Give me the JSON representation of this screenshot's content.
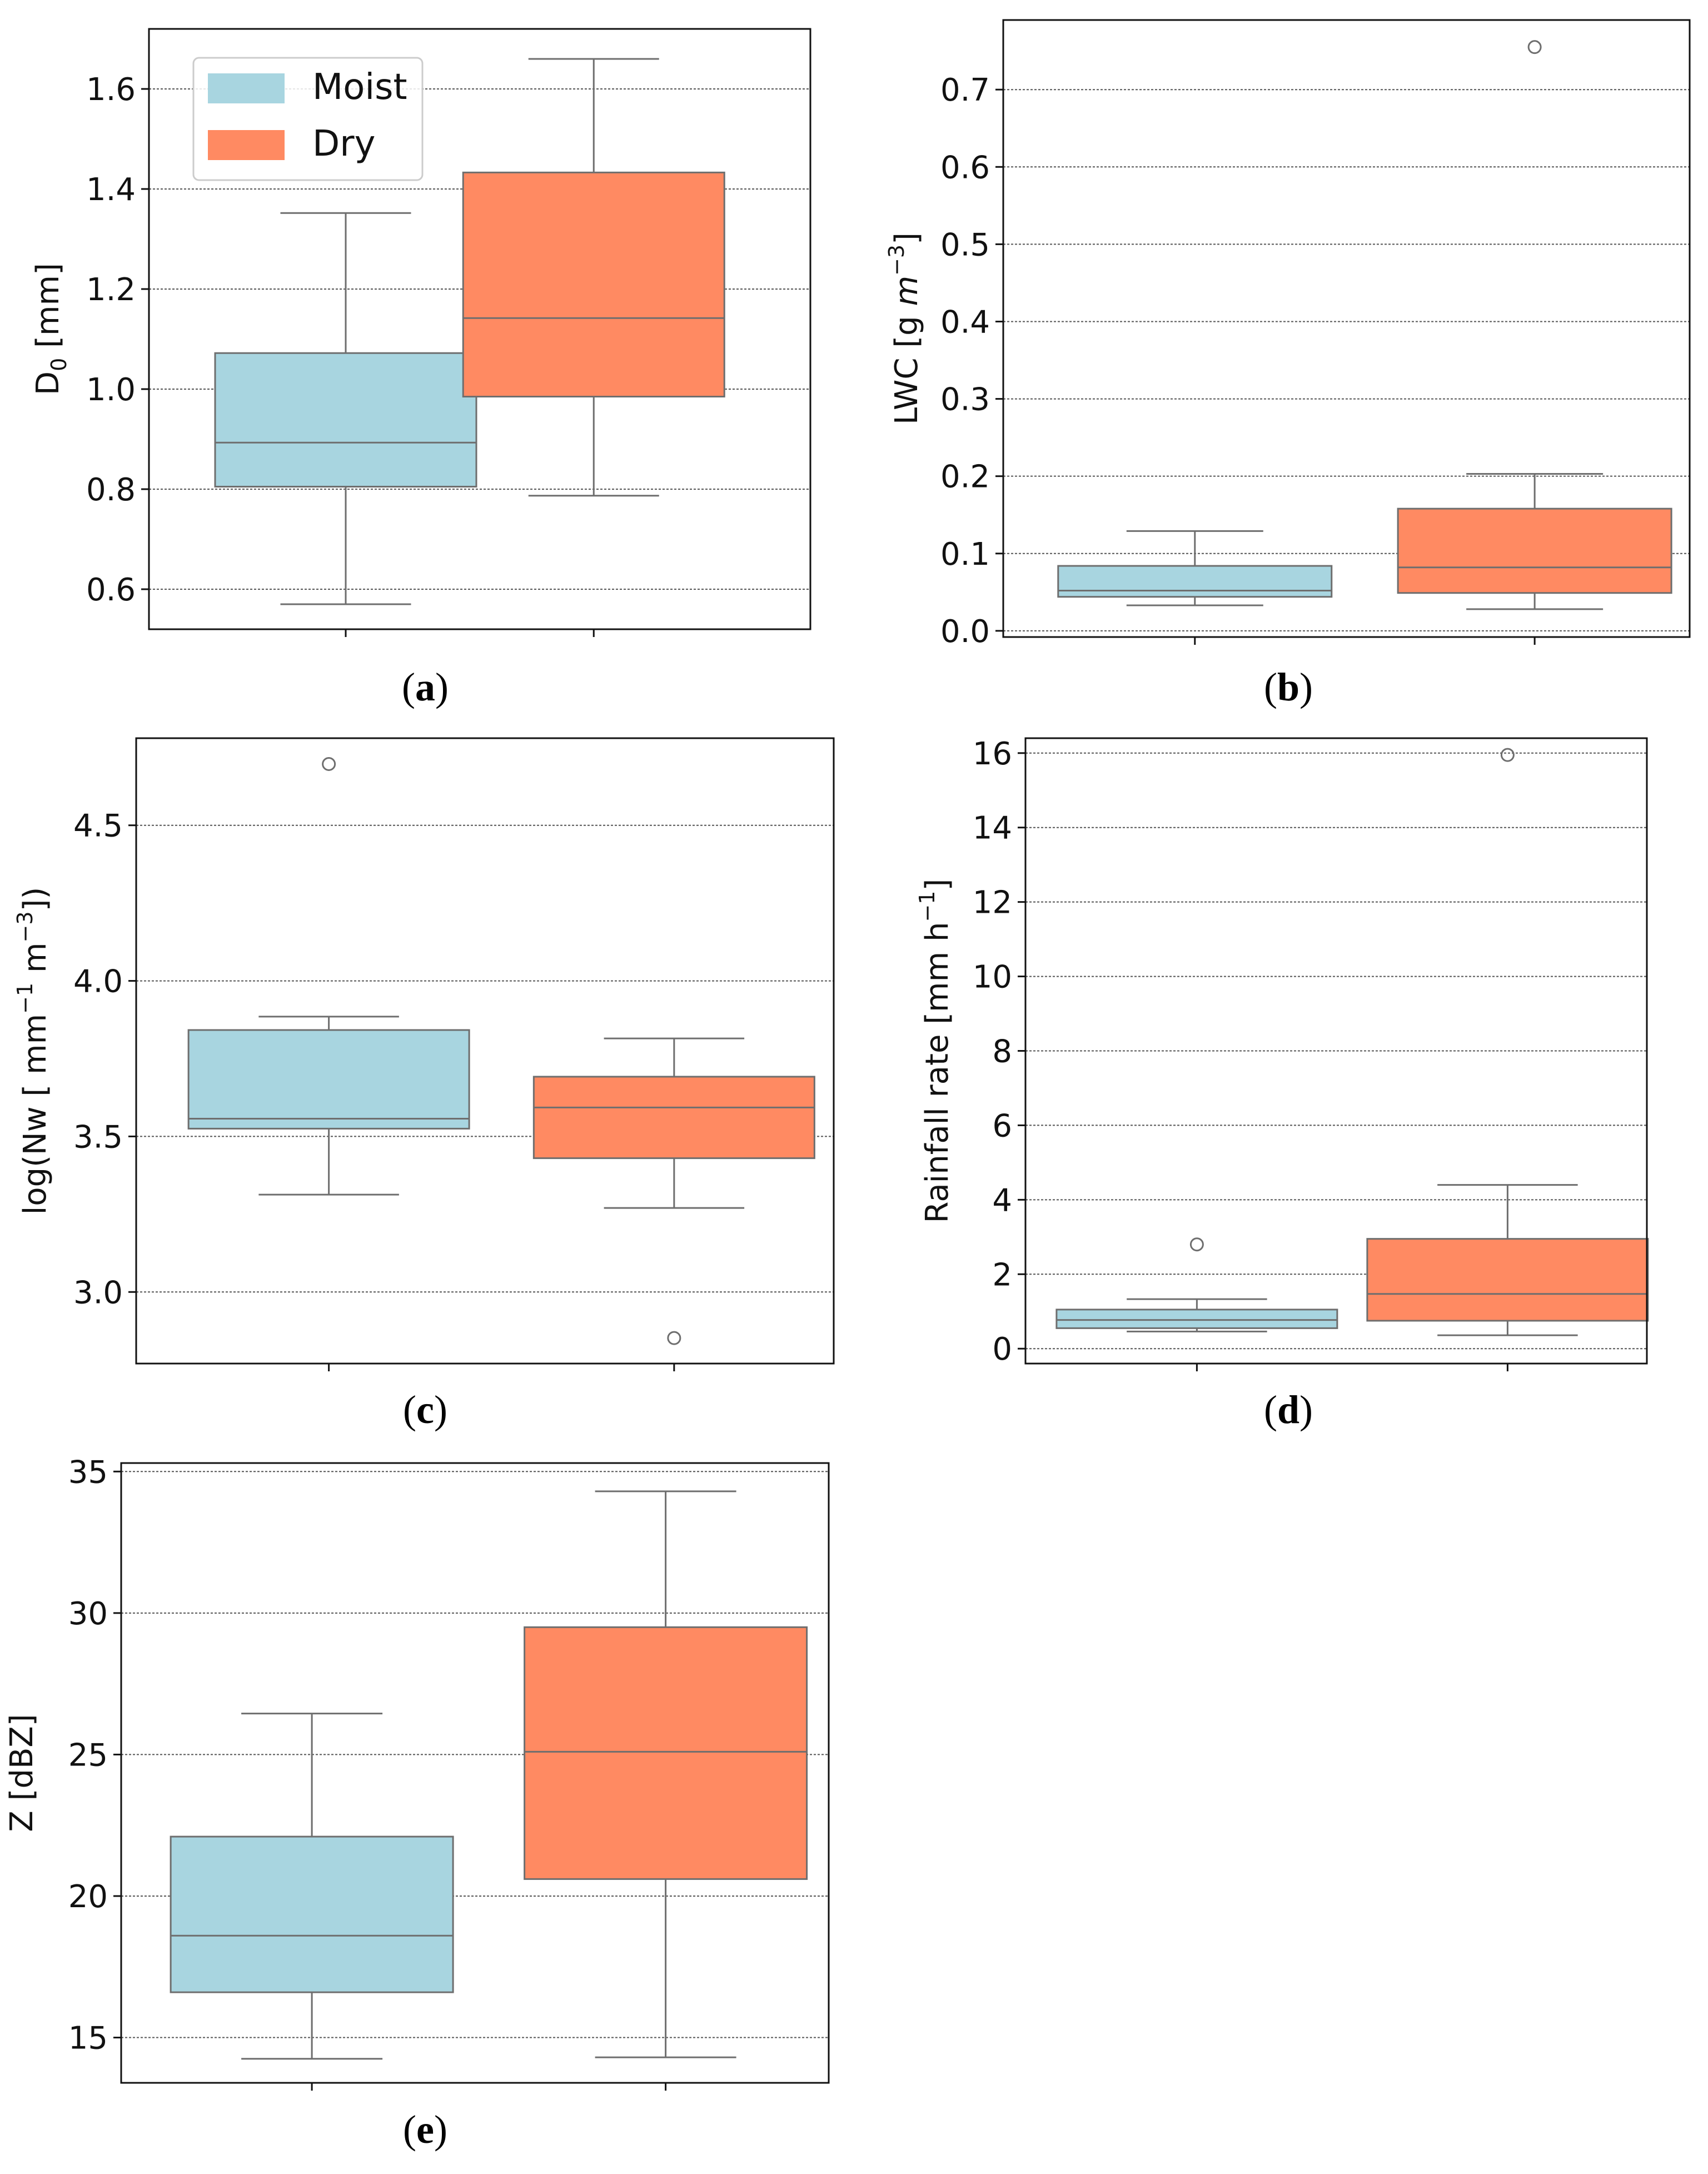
{
  "legend": {
    "items": [
      {
        "label": "Moist",
        "color": "#a8d5e0"
      },
      {
        "label": "Dry",
        "color": "#ff8a62"
      }
    ]
  },
  "colors": {
    "moist": "#a8d5e0",
    "dry": "#ff8a62",
    "whisker": "#6e6e6e",
    "grid": "#555555"
  },
  "chart_data": [
    {
      "panel": "a",
      "caption_letter": "a",
      "type": "box",
      "ylabel": "D",
      "ylabel_sub": "0",
      "ylabel_rest": " [mm]",
      "ylim": [
        0.52,
        1.72
      ],
      "yticks": [
        0.6,
        0.8,
        1.0,
        1.2,
        1.4,
        1.6
      ],
      "tick_format": 1,
      "grid": true,
      "legend_position": "top-left",
      "series": [
        {
          "name": "Moist",
          "whisker_low": 0.57,
          "q1": 0.805,
          "median": 0.893,
          "q3": 1.072,
          "whisker_high": 1.352,
          "outliers": []
        },
        {
          "name": "Dry",
          "whisker_low": 0.787,
          "q1": 0.985,
          "median": 1.142,
          "q3": 1.433,
          "whisker_high": 1.66,
          "outliers": []
        }
      ]
    },
    {
      "panel": "b",
      "caption_letter": "b",
      "type": "box",
      "ylabel": "LWC [g ",
      "ylabel_italic": "m",
      "ylabel_sup": "−3",
      "ylabel_rest": "]",
      "ylim": [
        -0.008,
        0.79
      ],
      "yticks": [
        0.0,
        0.1,
        0.2,
        0.3,
        0.4,
        0.5,
        0.6,
        0.7
      ],
      "tick_format": 1,
      "grid": true,
      "series": [
        {
          "name": "Moist",
          "whisker_low": 0.033,
          "q1": 0.044,
          "median": 0.052,
          "q3": 0.084,
          "whisker_high": 0.129,
          "outliers": []
        },
        {
          "name": "Dry",
          "whisker_low": 0.028,
          "q1": 0.049,
          "median": 0.082,
          "q3": 0.158,
          "whisker_high": 0.203,
          "outliers": [
            0.755
          ]
        }
      ]
    },
    {
      "panel": "c",
      "caption_letter": "c",
      "type": "box",
      "ylabel": "log(Nw [  mm",
      "ylabel_sup": "−1",
      "ylabel_mid": " m",
      "ylabel_sup2": "−3",
      "ylabel_rest": "])",
      "ylim": [
        2.77,
        4.78
      ],
      "yticks": [
        3.0,
        3.5,
        4.0,
        4.5
      ],
      "tick_format": 1,
      "grid": true,
      "series": [
        {
          "name": "Moist",
          "whisker_low": 3.313,
          "q1": 3.525,
          "median": 3.557,
          "q3": 3.842,
          "whisker_high": 3.885,
          "outliers": [
            4.697
          ]
        },
        {
          "name": "Dry",
          "whisker_low": 3.27,
          "q1": 3.43,
          "median": 3.593,
          "q3": 3.692,
          "whisker_high": 3.815,
          "outliers": [
            2.852
          ]
        }
      ]
    },
    {
      "panel": "d",
      "caption_letter": "d",
      "type": "box",
      "ylabel": "Rainfall rate [mm h",
      "ylabel_sup": "−1",
      "ylabel_rest": "]",
      "ylim": [
        -0.4,
        16.4
      ],
      "yticks": [
        0,
        2,
        4,
        6,
        8,
        10,
        12,
        14,
        16
      ],
      "tick_format": 0,
      "grid": true,
      "series": [
        {
          "name": "Moist",
          "whisker_low": 0.46,
          "q1": 0.55,
          "median": 0.77,
          "q3": 1.05,
          "whisker_high": 1.33,
          "outliers": [
            2.8
          ]
        },
        {
          "name": "Dry",
          "whisker_low": 0.36,
          "q1": 0.75,
          "median": 1.47,
          "q3": 2.95,
          "whisker_high": 4.4,
          "outliers": [
            15.95
          ]
        }
      ]
    },
    {
      "panel": "e",
      "caption_letter": "e",
      "type": "box",
      "ylabel": "Z [dBZ]",
      "ylim": [
        13.4,
        35.3
      ],
      "yticks": [
        15,
        20,
        25,
        30,
        35
      ],
      "tick_format": 0,
      "grid": true,
      "series": [
        {
          "name": "Moist",
          "whisker_low": 14.25,
          "q1": 16.6,
          "median": 18.6,
          "q3": 22.1,
          "whisker_high": 26.45,
          "outliers": []
        },
        {
          "name": "Dry",
          "whisker_low": 14.3,
          "q1": 20.6,
          "median": 25.1,
          "q3": 29.5,
          "whisker_high": 34.3,
          "outliers": []
        }
      ]
    }
  ]
}
